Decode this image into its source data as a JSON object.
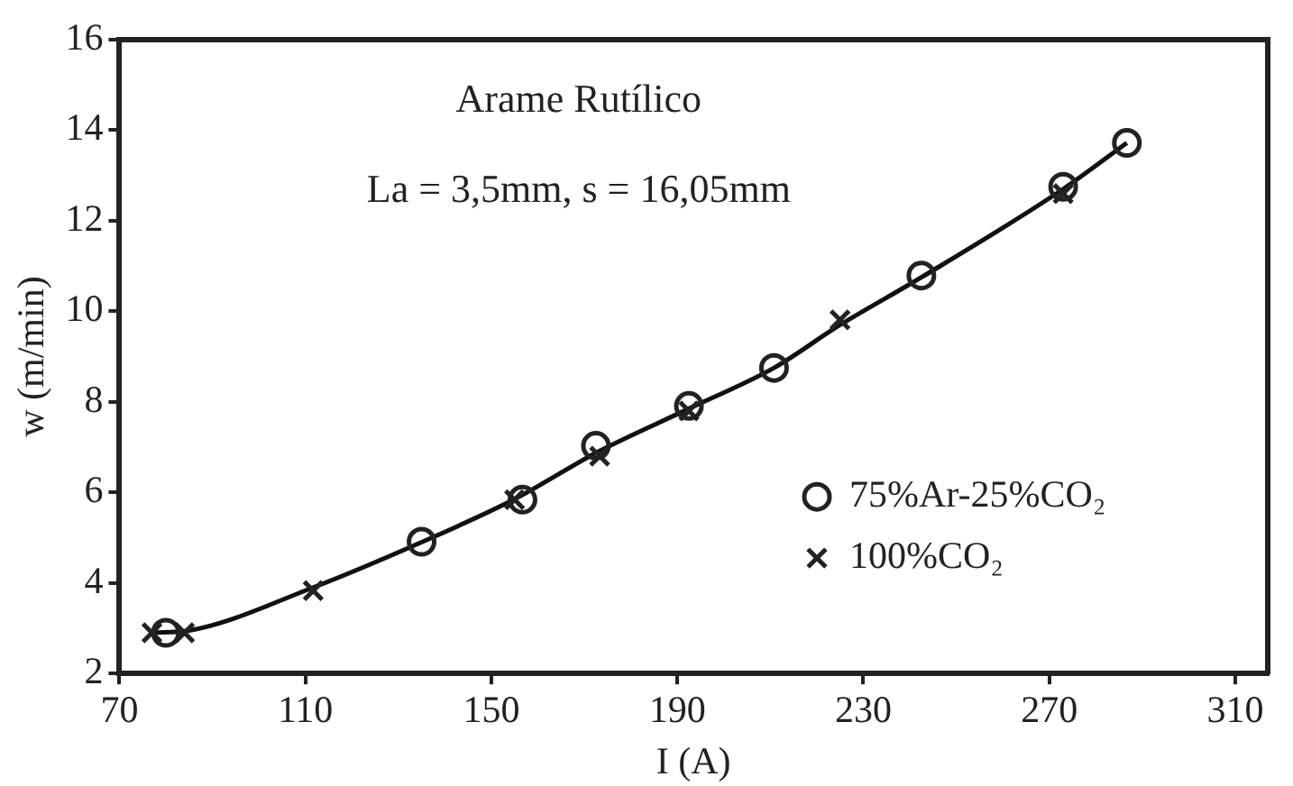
{
  "chart_data": {
    "type": "scatter",
    "xlabel": "I (A)",
    "ylabel": "w (m/min)",
    "annotations": [
      "Arame Rutílico",
      "La = 3,5mm, s = 16,05mm"
    ],
    "xlim": [
      70,
      317
    ],
    "xticks": [
      70,
      110,
      150,
      190,
      230,
      270,
      310
    ],
    "ylim": [
      2,
      16
    ],
    "yticks": [
      2,
      4,
      6,
      8,
      10,
      12,
      14,
      16
    ],
    "grid": false,
    "legend": "bottom right",
    "series": [
      {
        "name": "75%Ar-25%CO₂",
        "color": "#222222",
        "marker": "circle",
        "x": [
          80,
          135,
          156.7,
          172.5,
          192.5,
          210.8,
          242.5,
          273,
          286.7
        ],
        "values": [
          2.9,
          4.91,
          5.84,
          7.03,
          7.91,
          8.75,
          10.79,
          12.75,
          13.72
        ]
      },
      {
        "name": "100%CO₂",
        "color": "#222222",
        "marker": "cross",
        "x": [
          77,
          84,
          111.7,
          155,
          173.3,
          192.5,
          225,
          273
        ],
        "values": [
          2.9,
          2.9,
          3.83,
          5.84,
          6.8,
          7.8,
          9.81,
          12.6
        ]
      },
      {
        "type": "line",
        "color": "#111111",
        "marker": "none",
        "x": [
          77,
          85,
          111.7,
          135,
          155,
          173,
          192.5,
          210.8,
          225,
          242.5,
          273,
          286.7
        ],
        "values": [
          2.9,
          2.95,
          3.9,
          4.9,
          5.85,
          6.9,
          7.85,
          8.75,
          9.7,
          10.75,
          12.7,
          13.72
        ]
      }
    ]
  }
}
